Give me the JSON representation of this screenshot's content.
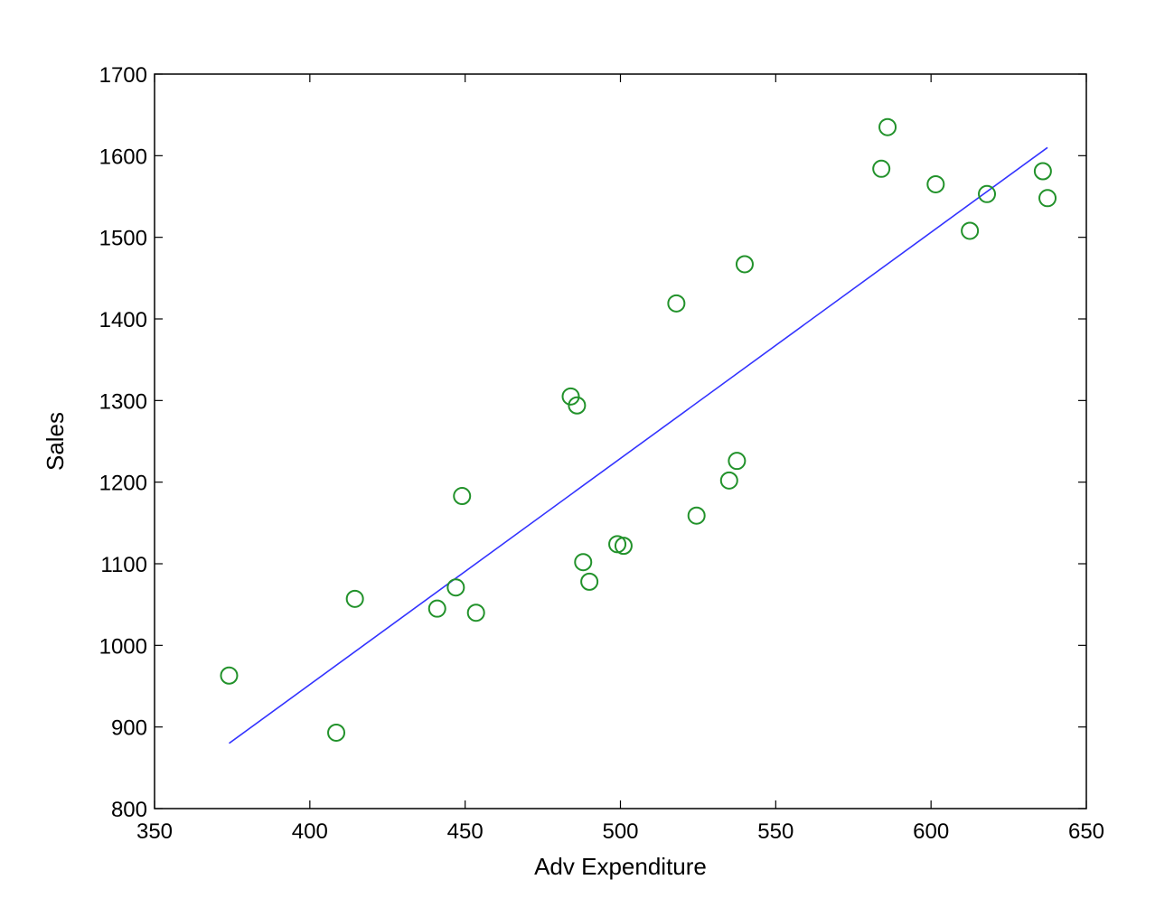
{
  "chart_data": {
    "type": "scatter",
    "title": "",
    "xlabel": "Adv Expenditure",
    "ylabel": "Sales",
    "xlim": [
      350,
      650
    ],
    "ylim": [
      800,
      1700
    ],
    "xticks": [
      350,
      400,
      450,
      500,
      550,
      600,
      650
    ],
    "yticks": [
      800,
      900,
      1000,
      1100,
      1200,
      1300,
      1400,
      1500,
      1600,
      1700
    ],
    "xtick_labels": [
      "350",
      "400",
      "450",
      "500",
      "550",
      "600",
      "650"
    ],
    "ytick_labels": [
      "800",
      "900",
      "1000",
      "1100",
      "1200",
      "1300",
      "1400",
      "1500",
      "1600",
      "1700"
    ],
    "grid": false,
    "legend": "none",
    "colors": {
      "points": "#22922b",
      "fit_line": "#3333ff",
      "axes": "#000000"
    },
    "series": [
      {
        "type": "scatter",
        "marker": "circle",
        "x": [
          374,
          408.5,
          414.5,
          441,
          447,
          449,
          453.5,
          484,
          486,
          488,
          490,
          499,
          501,
          518,
          524.5,
          535,
          537.5,
          540,
          584,
          586,
          601.5,
          612.5,
          618,
          636,
          637.5
        ],
        "y": [
          963,
          893,
          1057,
          1045,
          1071,
          1183,
          1040,
          1305,
          1294,
          1102,
          1078,
          1124,
          1122,
          1419,
          1159,
          1202,
          1226,
          1467,
          1584,
          1635,
          1565,
          1508,
          1553,
          1581,
          1548
        ]
      },
      {
        "type": "line",
        "x": [
          374,
          637.5
        ],
        "y": [
          880,
          1610
        ]
      }
    ]
  }
}
